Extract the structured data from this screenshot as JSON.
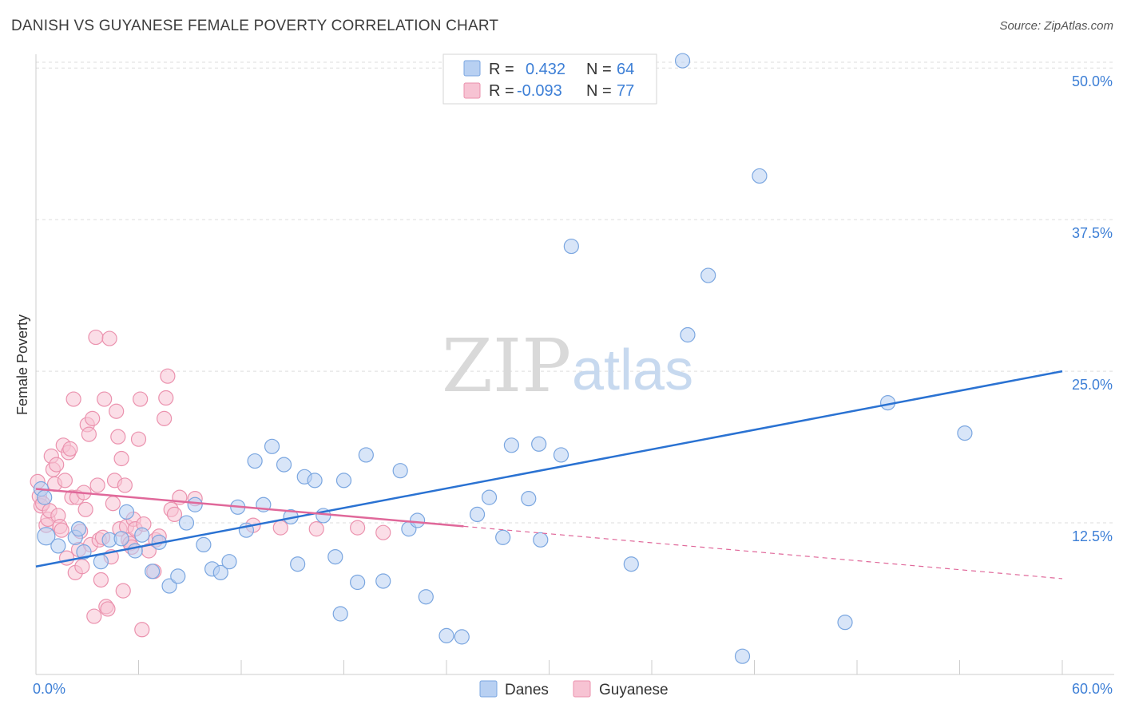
{
  "header": {
    "title": "DANISH VS GUYANESE FEMALE POVERTY CORRELATION CHART",
    "source": "Source: ZipAtlas.com"
  },
  "watermark": {
    "zip": "ZIP",
    "atlas": "atlas"
  },
  "legend": {
    "danes": {
      "r_label": "R =",
      "r_value": "0.432",
      "n_label": "N =",
      "n_value": "64"
    },
    "guyanese": {
      "r_label": "R =",
      "r_value": "-0.093",
      "n_label": "N =",
      "n_value": "77"
    }
  },
  "bottom_legend": {
    "danes": "Danes",
    "guyanese": "Guyanese"
  },
  "colors": {
    "danes_fill": "#b8d0f2",
    "danes_stroke": "#7aa6e0",
    "danes_line": "#2a72d2",
    "guyanese_fill": "#f7c3d3",
    "guyanese_stroke": "#eb92ae",
    "guyanese_line": "#e0689a",
    "tick_label": "#3d7fd6",
    "grid": "#dddddd"
  },
  "chart_data": {
    "type": "scatter",
    "title": "DANISH VS GUYANESE FEMALE POVERTY CORRELATION CHART",
    "xlabel": "",
    "ylabel": "Female Poverty",
    "xlim": [
      0,
      60
    ],
    "ylim": [
      0,
      51
    ],
    "x_tick_labels": [
      "0.0%",
      "60.0%"
    ],
    "y_ticks": [
      12.5,
      25.0,
      37.5,
      50.0
    ],
    "y_tick_labels": [
      "12.5%",
      "25.0%",
      "37.5%",
      "50.0%"
    ],
    "grid": true,
    "legend_position": "top-center",
    "series": [
      {
        "name": "Danes",
        "r": 0.432,
        "n": 64,
        "trend": {
          "x": [
            0,
            60
          ],
          "y": [
            8.9,
            25.0
          ],
          "dashed_from": null
        },
        "points": [
          [
            0.3,
            15.3,
            9
          ],
          [
            0.5,
            14.6,
            9
          ],
          [
            0.6,
            11.4,
            11
          ],
          [
            1.3,
            10.6,
            9
          ],
          [
            2.3,
            11.3,
            9
          ],
          [
            2.8,
            10.1,
            9
          ],
          [
            3.8,
            9.3,
            9
          ],
          [
            4.3,
            11.1,
            9
          ],
          [
            5.0,
            11.2,
            9
          ],
          [
            5.3,
            13.4,
            9
          ],
          [
            5.8,
            10.2,
            9
          ],
          [
            6.2,
            11.5,
            9
          ],
          [
            6.8,
            8.5,
            9
          ],
          [
            7.2,
            10.9,
            9
          ],
          [
            7.8,
            7.3,
            9
          ],
          [
            8.3,
            8.1,
            9
          ],
          [
            8.8,
            12.5,
            9
          ],
          [
            9.3,
            14.0,
            9
          ],
          [
            9.8,
            10.7,
            9
          ],
          [
            10.3,
            8.7,
            9
          ],
          [
            10.8,
            8.4,
            9
          ],
          [
            11.3,
            9.3,
            9
          ],
          [
            11.8,
            13.8,
            9
          ],
          [
            12.3,
            11.9,
            9
          ],
          [
            12.8,
            17.6,
            9
          ],
          [
            13.3,
            14.0,
            9
          ],
          [
            13.8,
            18.8,
            9
          ],
          [
            14.5,
            17.3,
            9
          ],
          [
            14.9,
            13.0,
            9
          ],
          [
            15.3,
            9.1,
            9
          ],
          [
            15.7,
            16.3,
            9
          ],
          [
            16.3,
            16.0,
            9
          ],
          [
            16.8,
            13.1,
            9
          ],
          [
            17.5,
            9.7,
            9
          ],
          [
            17.8,
            5.0,
            9
          ],
          [
            18.0,
            16.0,
            9
          ],
          [
            18.8,
            7.6,
            9
          ],
          [
            19.3,
            18.1,
            9
          ],
          [
            20.3,
            7.7,
            9
          ],
          [
            21.3,
            16.8,
            9
          ],
          [
            21.8,
            12.0,
            9
          ],
          [
            22.3,
            12.7,
            9
          ],
          [
            22.8,
            6.4,
            9
          ],
          [
            24.0,
            3.2,
            9
          ],
          [
            24.9,
            3.1,
            9
          ],
          [
            25.8,
            13.2,
            9
          ],
          [
            26.5,
            14.6,
            9
          ],
          [
            27.3,
            11.3,
            9
          ],
          [
            27.8,
            18.9,
            9
          ],
          [
            28.8,
            14.5,
            9
          ],
          [
            29.4,
            19.0,
            9
          ],
          [
            29.5,
            11.1,
            9
          ],
          [
            30.7,
            18.1,
            9
          ],
          [
            31.3,
            35.3,
            9
          ],
          [
            34.8,
            9.1,
            9
          ],
          [
            37.8,
            50.6,
            9
          ],
          [
            38.1,
            28.0,
            9
          ],
          [
            39.3,
            32.9,
            9
          ],
          [
            41.3,
            1.5,
            9
          ],
          [
            42.3,
            41.1,
            9
          ],
          [
            47.3,
            4.3,
            9
          ],
          [
            49.8,
            22.4,
            9
          ],
          [
            54.3,
            19.9,
            9
          ],
          [
            2.5,
            12.0,
            9
          ]
        ]
      },
      {
        "name": "Guyanese",
        "r": -0.093,
        "n": 77,
        "trend": {
          "x": [
            0,
            60
          ],
          "y": [
            15.3,
            7.9
          ],
          "dashed_from": 25
        },
        "points": [
          [
            0.1,
            15.9,
            9
          ],
          [
            0.2,
            14.7,
            9
          ],
          [
            0.3,
            13.9,
            9
          ],
          [
            0.4,
            14.1,
            9
          ],
          [
            0.6,
            12.3,
            9
          ],
          [
            0.7,
            12.8,
            9
          ],
          [
            0.8,
            13.5,
            9
          ],
          [
            0.9,
            18.0,
            9
          ],
          [
            1.0,
            16.9,
            9
          ],
          [
            1.1,
            15.7,
            9
          ],
          [
            1.2,
            17.3,
            9
          ],
          [
            1.3,
            13.1,
            9
          ],
          [
            1.4,
            12.2,
            9
          ],
          [
            1.5,
            11.9,
            9
          ],
          [
            1.6,
            18.9,
            9
          ],
          [
            1.7,
            16.0,
            9
          ],
          [
            1.8,
            9.6,
            9
          ],
          [
            1.9,
            18.3,
            9
          ],
          [
            2.0,
            18.6,
            9
          ],
          [
            2.1,
            14.6,
            9
          ],
          [
            2.2,
            22.7,
            9
          ],
          [
            2.3,
            8.4,
            9
          ],
          [
            2.4,
            14.6,
            9
          ],
          [
            2.5,
            10.3,
            9
          ],
          [
            2.6,
            11.8,
            9
          ],
          [
            2.7,
            8.9,
            9
          ],
          [
            2.8,
            15.0,
            9
          ],
          [
            2.9,
            13.6,
            9
          ],
          [
            3.0,
            20.6,
            9
          ],
          [
            3.1,
            19.8,
            9
          ],
          [
            3.2,
            10.7,
            9
          ],
          [
            3.3,
            21.1,
            9
          ],
          [
            3.4,
            4.8,
            9
          ],
          [
            3.5,
            27.8,
            9
          ],
          [
            3.6,
            15.6,
            9
          ],
          [
            3.7,
            11.1,
            9
          ],
          [
            3.8,
            7.8,
            9
          ],
          [
            3.9,
            11.3,
            9
          ],
          [
            4.0,
            22.7,
            9
          ],
          [
            4.1,
            5.6,
            9
          ],
          [
            4.2,
            5.4,
            9
          ],
          [
            4.3,
            27.7,
            9
          ],
          [
            4.4,
            9.7,
            9
          ],
          [
            4.5,
            14.1,
            9
          ],
          [
            4.6,
            16.0,
            9
          ],
          [
            4.7,
            21.7,
            9
          ],
          [
            4.8,
            19.6,
            9
          ],
          [
            4.9,
            12.0,
            9
          ],
          [
            5.0,
            17.8,
            9
          ],
          [
            5.1,
            6.9,
            9
          ],
          [
            5.2,
            15.6,
            9
          ],
          [
            5.3,
            12.2,
            9
          ],
          [
            5.4,
            11.1,
            9
          ],
          [
            5.5,
            10.8,
            9
          ],
          [
            5.6,
            10.5,
            9
          ],
          [
            5.7,
            12.8,
            9
          ],
          [
            5.8,
            12.0,
            9
          ],
          [
            6.0,
            19.4,
            9
          ],
          [
            6.1,
            22.7,
            9
          ],
          [
            6.2,
            3.7,
            9
          ],
          [
            6.3,
            12.4,
            9
          ],
          [
            6.6,
            10.2,
            9
          ],
          [
            6.9,
            8.5,
            9
          ],
          [
            7.0,
            11.1,
            9
          ],
          [
            7.2,
            11.4,
            9
          ],
          [
            7.5,
            21.1,
            9
          ],
          [
            7.6,
            22.8,
            9
          ],
          [
            7.7,
            24.6,
            9
          ],
          [
            7.9,
            13.6,
            9
          ],
          [
            8.1,
            13.2,
            9
          ],
          [
            8.4,
            14.6,
            9
          ],
          [
            9.3,
            14.5,
            9
          ],
          [
            12.7,
            12.3,
            9
          ],
          [
            14.3,
            12.1,
            9
          ],
          [
            16.4,
            12.0,
            9
          ],
          [
            18.8,
            12.1,
            9
          ],
          [
            20.3,
            11.7,
            9
          ]
        ]
      }
    ]
  }
}
